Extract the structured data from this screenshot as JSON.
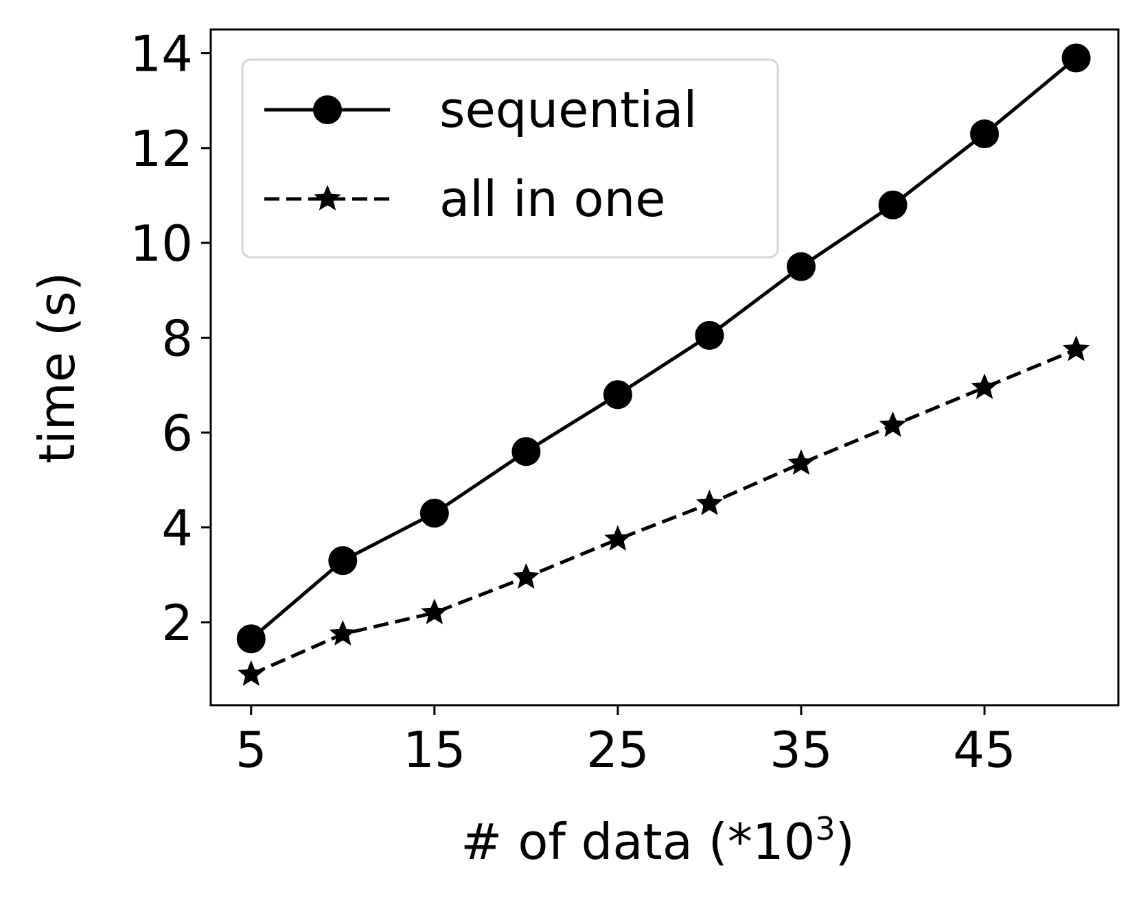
{
  "chart_data": {
    "type": "line",
    "title": "",
    "xlabel": "# of data (*10",
    "xlabel_superscript": "3",
    "xlabel_suffix": ")",
    "ylabel": "time (s)",
    "xlim": [
      2.8,
      52.3
    ],
    "ylim": [
      0.25,
      14.5
    ],
    "xticks": [
      5,
      15,
      25,
      35,
      45
    ],
    "yticks": [
      2,
      4,
      6,
      8,
      10,
      12,
      14
    ],
    "grid": false,
    "legend_position": "top-left",
    "x": [
      5,
      10,
      15,
      20,
      25,
      30,
      35,
      40,
      45,
      50
    ],
    "series": [
      {
        "name": "sequential",
        "marker": "circle",
        "linestyle": "solid",
        "color": "#000000",
        "values": [
          1.65,
          3.3,
          4.3,
          5.6,
          6.8,
          8.05,
          9.5,
          10.8,
          12.3,
          13.9
        ]
      },
      {
        "name": "all in one",
        "marker": "star",
        "linestyle": "dashed",
        "color": "#000000",
        "values": [
          0.9,
          1.75,
          2.2,
          2.95,
          3.75,
          4.5,
          5.35,
          6.15,
          6.95,
          7.75
        ]
      }
    ]
  }
}
